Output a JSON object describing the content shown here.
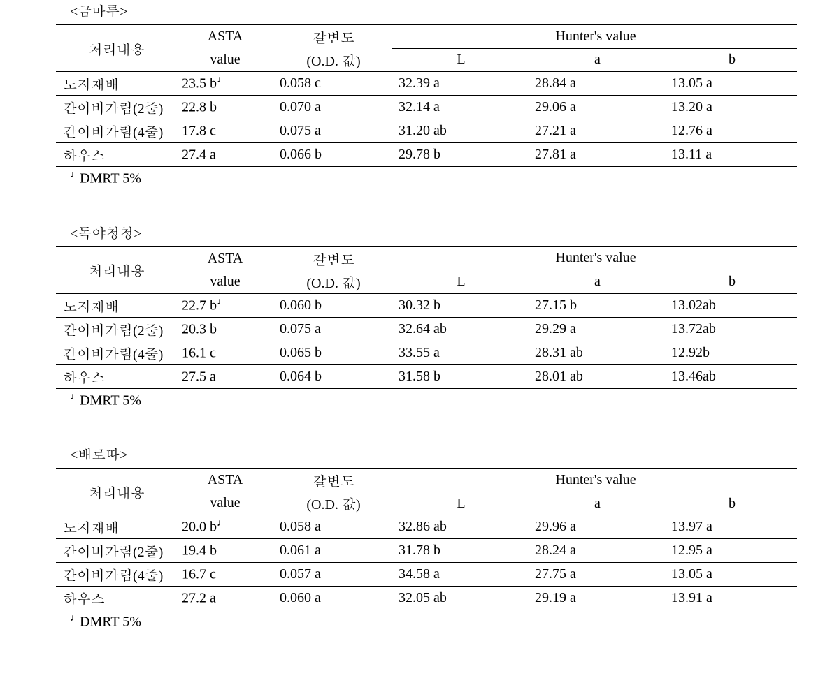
{
  "tables": [
    {
      "title": "<금마루>",
      "header": {
        "treat": "처리내용",
        "asta1": "ASTA",
        "asta2": "value",
        "browning1": "갈변도",
        "browning2": "(O.D. 값)",
        "hunter": "Hunter's value",
        "L": "L",
        "a": "a",
        "b": "b"
      },
      "rows": [
        {
          "t": "노지재배",
          "asta_val": "23.5 b",
          "asta_mark": "♩",
          "od": "0.058 c",
          "L": "32.39 a",
          "a": "28.84 a",
          "b": "13.05 a"
        },
        {
          "t": "간이비가림(2줄)",
          "asta_val": "22.8 b",
          "asta_mark": "",
          "od": "0.070 a",
          "L": "32.14 a",
          "a": "29.06 a",
          "b": "13.20 a"
        },
        {
          "t": "간이비가림(4줄)",
          "asta_val": "17.8 c",
          "asta_mark": "",
          "od": "0.075 a",
          "L": "31.20 ab",
          "a": "27.21 a",
          "b": "12.76 a"
        },
        {
          "t": "하우스",
          "asta_val": "27.4 a",
          "asta_mark": "",
          "od": "0.066 b",
          "L": "29.78 b",
          "a": "27.81 a",
          "b": "13.11 a"
        }
      ],
      "footnote_mark": "♩",
      "footnote": "DMRT 5%"
    },
    {
      "title": "<독야청청>",
      "header": {
        "treat": "처리내용",
        "asta1": "ASTA",
        "asta2": "value",
        "browning1": "갈변도",
        "browning2": "(O.D. 값)",
        "hunter": "Hunter's value",
        "L": "L",
        "a": "a",
        "b": "b"
      },
      "rows": [
        {
          "t": "노지재배",
          "asta_val": "22.7 b",
          "asta_mark": "♩",
          "od": "0.060 b",
          "L": "30.32 b",
          "a": "27.15 b",
          "b": "13.02ab"
        },
        {
          "t": "간이비가림(2줄)",
          "asta_val": "20.3 b",
          "asta_mark": "",
          "od": "0.075 a",
          "L": "32.64 ab",
          "a": "29.29 a",
          "b": "13.72ab"
        },
        {
          "t": "간이비가림(4줄)",
          "asta_val": "16.1 c",
          "asta_mark": "",
          "od": "0.065 b",
          "L": "33.55 a",
          "a": "28.31 ab",
          "b": "12.92b"
        },
        {
          "t": "하우스",
          "asta_val": "27.5 a",
          "asta_mark": "",
          "od": "0.064 b",
          "L": "31.58 b",
          "a": "28.01 ab",
          "b": "13.46ab"
        }
      ],
      "footnote_mark": "♩",
      "footnote": "DMRT 5%"
    },
    {
      "title": "<배로따>",
      "header": {
        "treat": "처리내용",
        "asta1": "ASTA",
        "asta2": "value",
        "browning1": "갈변도",
        "browning2": "(O.D. 값)",
        "hunter": "Hunter's value",
        "L": "L",
        "a": "a",
        "b": "b"
      },
      "rows": [
        {
          "t": "노지재배",
          "asta_val": "20.0 b",
          "asta_mark": "♩",
          "od": "0.058 a",
          "L": "32.86 ab",
          "a": "29.96 a",
          "b": "13.97 a"
        },
        {
          "t": "간이비가림(2줄)",
          "asta_val": "19.4 b",
          "asta_mark": "",
          "od": "0.061 a",
          "L": "31.78 b",
          "a": "28.24 a",
          "b": "12.95 a"
        },
        {
          "t": "간이비가림(4줄)",
          "asta_val": "16.7 c",
          "asta_mark": "",
          "od": "0.057 a",
          "L": "34.58 a",
          "a": "27.75 a",
          "b": "13.05 a"
        },
        {
          "t": "하우스",
          "asta_val": "27.2 a",
          "asta_mark": "",
          "od": "0.060 a",
          "L": "32.05 ab",
          "a": "29.19 a",
          "b": "13.91 a"
        }
      ],
      "footnote_mark": "♩",
      "footnote": "DMRT 5%"
    }
  ]
}
